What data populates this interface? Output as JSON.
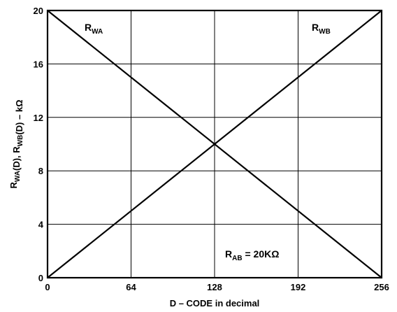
{
  "chart_data": {
    "type": "line",
    "xlabel": "D – CODE in decimal",
    "ylabel": {
      "parts": [
        {
          "t": "R",
          "sub": false
        },
        {
          "t": "WA",
          "sub": true
        },
        {
          "t": "(D), R",
          "sub": false
        },
        {
          "t": "WB",
          "sub": true
        },
        {
          "t": "(D) – kΩ",
          "sub": false
        }
      ]
    },
    "xlim": [
      0,
      256
    ],
    "ylim": [
      0,
      20
    ],
    "xticks": [
      "0",
      "64",
      "128",
      "192",
      "256"
    ],
    "yticks": [
      "0",
      "4",
      "8",
      "12",
      "16",
      "20"
    ],
    "grid": true,
    "series": [
      {
        "name": "R",
        "sub": "WA",
        "x": [
          0,
          256
        ],
        "y": [
          20,
          0
        ]
      },
      {
        "name": "R",
        "sub": "WB",
        "x": [
          0,
          256
        ],
        "y": [
          0,
          20
        ]
      }
    ],
    "annotation": {
      "main": "R",
      "sub": "AB",
      "rest": " = 20KΩ"
    }
  }
}
